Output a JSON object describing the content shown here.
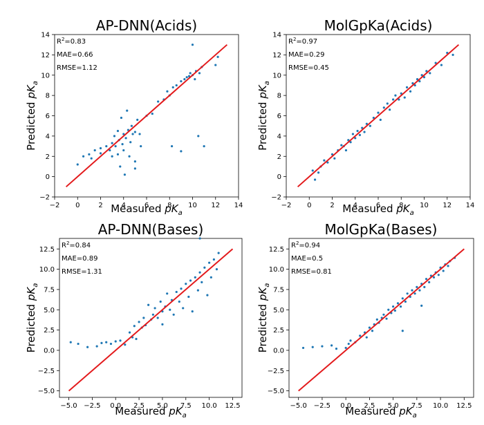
{
  "figure": {
    "xlabel_text": "Measured ",
    "ylabel_text": "Predicted ",
    "quantity_symbol": "pK",
    "quantity_subscript": "a"
  },
  "chart_data": [
    {
      "type": "scatter",
      "title": "AP-DNN(Acids)",
      "xlabel": "Measured pKa",
      "ylabel": "Predicted pKa",
      "xlim": [
        -2,
        14
      ],
      "ylim": [
        -2,
        14
      ],
      "xticks": [
        "−2",
        "0",
        "2",
        "4",
        "6",
        "8",
        "10",
        "12",
        "14"
      ],
      "yticks": [
        "−2",
        "0",
        "2",
        "4",
        "6",
        "8",
        "10",
        "12",
        "14"
      ],
      "tick_values": [
        -2,
        0,
        2,
        4,
        6,
        8,
        10,
        12,
        14
      ],
      "stats": {
        "r2_label": "R",
        "r2_exp": "2",
        "r2_value": "=0.83",
        "mae": "MAE=0.66",
        "rmse": "RMSE=1.12"
      },
      "line": {
        "x": [
          -1,
          13
        ],
        "y": [
          -1,
          13
        ]
      },
      "points": [
        [
          0,
          1.2
        ],
        [
          0.5,
          2.0
        ],
        [
          1,
          2.2
        ],
        [
          1.2,
          1.8
        ],
        [
          1.5,
          2.6
        ],
        [
          2,
          2.3
        ],
        [
          2,
          2.8
        ],
        [
          2.5,
          3.0
        ],
        [
          2.8,
          2.6
        ],
        [
          3,
          3.3
        ],
        [
          3,
          2.0
        ],
        [
          3.2,
          4.0
        ],
        [
          3.3,
          3.0
        ],
        [
          3.5,
          2.2
        ],
        [
          3.5,
          4.5
        ],
        [
          3.6,
          3.6
        ],
        [
          3.7,
          1.0
        ],
        [
          3.8,
          5.8
        ],
        [
          3.9,
          3.2
        ],
        [
          4,
          4.2
        ],
        [
          4,
          2.6
        ],
        [
          4.1,
          0.2
        ],
        [
          4.2,
          3.8
        ],
        [
          4.3,
          6.5
        ],
        [
          4.4,
          4.6
        ],
        [
          4.5,
          2.0
        ],
        [
          4.6,
          3.4
        ],
        [
          4.7,
          5.0
        ],
        [
          4.8,
          4.2
        ],
        [
          5,
          1.5
        ],
        [
          5,
          4.4
        ],
        [
          5,
          0.8
        ],
        [
          5.2,
          5.6
        ],
        [
          5.4,
          4.2
        ],
        [
          5.5,
          3.0
        ],
        [
          6,
          6.0
        ],
        [
          6.5,
          6.2
        ],
        [
          7,
          7.4
        ],
        [
          7.5,
          7.6
        ],
        [
          7.8,
          8.4
        ],
        [
          8,
          8.0
        ],
        [
          8.2,
          3.0
        ],
        [
          8.3,
          8.8
        ],
        [
          8.6,
          9.0
        ],
        [
          9,
          9.4
        ],
        [
          9,
          2.5
        ],
        [
          9.3,
          9.6
        ],
        [
          9.5,
          9.8
        ],
        [
          9.7,
          9.9
        ],
        [
          9.8,
          10.2
        ],
        [
          10,
          10.0
        ],
        [
          10,
          13.0
        ],
        [
          10.2,
          9.6
        ],
        [
          10.3,
          10.4
        ],
        [
          10.5,
          4.0
        ],
        [
          10.6,
          10.2
        ],
        [
          10.8,
          10.8
        ],
        [
          11,
          3.0
        ],
        [
          12,
          11.0
        ],
        [
          12.2,
          11.8
        ]
      ]
    },
    {
      "type": "scatter",
      "title": "MolGpKa(Acids)",
      "xlabel": "Measured pKa",
      "ylabel": "Predicted pKa",
      "xlim": [
        -2,
        14
      ],
      "ylim": [
        -2,
        14
      ],
      "xticks": [
        "−2",
        "0",
        "2",
        "4",
        "6",
        "8",
        "10",
        "12",
        "14"
      ],
      "yticks": [
        "−2",
        "0",
        "2",
        "4",
        "6",
        "8",
        "10",
        "12",
        "14"
      ],
      "tick_values": [
        -2,
        0,
        2,
        4,
        6,
        8,
        10,
        12,
        14
      ],
      "stats": {
        "r2_label": "R",
        "r2_exp": "2",
        "r2_value": "=0.97",
        "mae": "MAE=0.29",
        "rmse": "RMSE=0.45"
      },
      "line": {
        "x": [
          -1,
          13
        ],
        "y": [
          -1,
          13
        ]
      },
      "points": [
        [
          0.3,
          0.6
        ],
        [
          0.5,
          -0.3
        ],
        [
          0.8,
          0.4
        ],
        [
          1,
          1.0
        ],
        [
          1.3,
          1.6
        ],
        [
          1.6,
          1.4
        ],
        [
          2,
          2.2
        ],
        [
          2.2,
          1.8
        ],
        [
          2.5,
          2.6
        ],
        [
          2.8,
          3.1
        ],
        [
          3,
          3.0
        ],
        [
          3.2,
          2.6
        ],
        [
          3.4,
          3.6
        ],
        [
          3.6,
          3.4
        ],
        [
          3.8,
          4.2
        ],
        [
          4,
          3.8
        ],
        [
          4.2,
          4.5
        ],
        [
          4.4,
          4.1
        ],
        [
          4.6,
          4.8
        ],
        [
          4.8,
          4.4
        ],
        [
          5,
          5.2
        ],
        [
          5.3,
          5.0
        ],
        [
          5.6,
          5.8
        ],
        [
          6,
          6.3
        ],
        [
          6.2,
          5.6
        ],
        [
          6.5,
          6.8
        ],
        [
          6.8,
          7.2
        ],
        [
          7,
          6.6
        ],
        [
          7.3,
          7.6
        ],
        [
          7.5,
          8.0
        ],
        [
          7.8,
          7.6
        ],
        [
          8,
          8.2
        ],
        [
          8.3,
          7.8
        ],
        [
          8.5,
          8.8
        ],
        [
          8.8,
          8.4
        ],
        [
          9,
          9.2
        ],
        [
          9.2,
          9.0
        ],
        [
          9.4,
          9.6
        ],
        [
          9.6,
          9.4
        ],
        [
          9.8,
          10.0
        ],
        [
          10,
          9.8
        ],
        [
          10.2,
          10.4
        ],
        [
          10.5,
          10.2
        ],
        [
          11,
          11.2
        ],
        [
          11.5,
          11.0
        ],
        [
          12,
          12.2
        ],
        [
          12.5,
          12.0
        ]
      ]
    },
    {
      "type": "scatter",
      "title": "AP-DNN(Bases)",
      "xlabel": "Measured pKa",
      "ylabel": "Predicted pKa",
      "xlim": [
        -6,
        13.5
      ],
      "ylim": [
        -5.8,
        13.8
      ],
      "xticks": [
        "−5.0",
        "−2.5",
        "0.0",
        "2.5",
        "5.0",
        "7.5",
        "10.0",
        "12.5"
      ],
      "yticks": [
        "−5.0",
        "−2.5",
        "0.0",
        "2.5",
        "5.0",
        "7.5",
        "10.0",
        "12.5"
      ],
      "tick_values": [
        -5,
        -2.5,
        0,
        2.5,
        5,
        7.5,
        10,
        12.5
      ],
      "stats": {
        "r2_label": "R",
        "r2_exp": "2",
        "r2_value": "=0.84",
        "mae": "MAE=0.89",
        "rmse": "RMSE=1.31"
      },
      "line": {
        "x": [
          -5,
          12.5
        ],
        "y": [
          -5,
          12.5
        ]
      },
      "points": [
        [
          -4.8,
          1.0
        ],
        [
          -4,
          0.8
        ],
        [
          -3,
          0.4
        ],
        [
          -2,
          0.5
        ],
        [
          -1.5,
          0.9
        ],
        [
          -1,
          1.0
        ],
        [
          -0.5,
          0.8
        ],
        [
          0,
          1.1
        ],
        [
          0.5,
          1.2
        ],
        [
          1,
          0.7
        ],
        [
          1.5,
          2.2
        ],
        [
          1.8,
          1.6
        ],
        [
          2,
          3.0
        ],
        [
          2.2,
          1.4
        ],
        [
          2.5,
          3.5
        ],
        [
          2.8,
          2.8
        ],
        [
          3,
          4.0
        ],
        [
          3.2,
          3.1
        ],
        [
          3.5,
          5.6
        ],
        [
          3.8,
          3.8
        ],
        [
          4,
          4.4
        ],
        [
          4.2,
          5.2
        ],
        [
          4.5,
          4.0
        ],
        [
          4.8,
          6.0
        ],
        [
          5,
          4.8
        ],
        [
          5,
          3.2
        ],
        [
          5.3,
          5.4
        ],
        [
          5.5,
          7.0
        ],
        [
          5.8,
          5.0
        ],
        [
          6,
          6.2
        ],
        [
          6.2,
          4.4
        ],
        [
          6.5,
          7.2
        ],
        [
          6.8,
          6.0
        ],
        [
          7,
          7.6
        ],
        [
          7.2,
          5.2
        ],
        [
          7.5,
          8.2
        ],
        [
          7.8,
          6.6
        ],
        [
          8,
          8.6
        ],
        [
          8.2,
          4.8
        ],
        [
          8.5,
          9.0
        ],
        [
          8.8,
          7.4
        ],
        [
          9,
          9.6
        ],
        [
          9.2,
          8.4
        ],
        [
          9.5,
          10.2
        ],
        [
          9.8,
          6.8
        ],
        [
          10,
          10.8
        ],
        [
          10.2,
          9.0
        ],
        [
          10.5,
          11.2
        ],
        [
          10.8,
          10.0
        ],
        [
          11,
          12.0
        ],
        [
          9,
          13.8
        ]
      ]
    },
    {
      "type": "scatter",
      "title": "MolGpKa(Bases)",
      "xlabel": "Measured pKa",
      "ylabel": "Predicted pKa",
      "xlim": [
        -6,
        13.5
      ],
      "ylim": [
        -5.8,
        13.8
      ],
      "xticks": [
        "−5.0",
        "−2.5",
        "0.0",
        "2.5",
        "5.0",
        "7.5",
        "10.0",
        "12.5"
      ],
      "yticks": [
        "−5.0",
        "−2.5",
        "0.0",
        "2.5",
        "5.0",
        "7.5",
        "10.0",
        "12.5"
      ],
      "tick_values": [
        -5,
        -2.5,
        0,
        2.5,
        5,
        7.5,
        10,
        12.5
      ],
      "stats": {
        "r2_label": "R",
        "r2_exp": "2",
        "r2_value": "=0.94",
        "mae": "MAE=0.5",
        "rmse": "RMSE=0.81"
      },
      "line": {
        "x": [
          -5,
          12.5
        ],
        "y": [
          -5,
          12.5
        ]
      },
      "points": [
        [
          -4.5,
          0.3
        ],
        [
          -3.5,
          0.4
        ],
        [
          -2.5,
          0.5
        ],
        [
          -1.5,
          0.6
        ],
        [
          -1,
          0.2
        ],
        [
          0,
          0.3
        ],
        [
          0.3,
          0.8
        ],
        [
          0.5,
          1.2
        ],
        [
          1,
          1.0
        ],
        [
          1.5,
          1.8
        ],
        [
          2,
          2.2
        ],
        [
          2.2,
          1.6
        ],
        [
          2.5,
          2.8
        ],
        [
          2.8,
          2.4
        ],
        [
          3,
          3.2
        ],
        [
          3.3,
          3.8
        ],
        [
          3.5,
          3.4
        ],
        [
          3.8,
          4.0
        ],
        [
          4,
          4.4
        ],
        [
          4.3,
          3.9
        ],
        [
          4.5,
          5.0
        ],
        [
          4.8,
          4.6
        ],
        [
          5,
          5.4
        ],
        [
          5.2,
          4.9
        ],
        [
          5.5,
          5.8
        ],
        [
          5.8,
          5.4
        ],
        [
          6,
          6.4
        ],
        [
          6.3,
          6.0
        ],
        [
          6.5,
          7.0
        ],
        [
          6.8,
          6.6
        ],
        [
          7,
          7.4
        ],
        [
          7.3,
          7.0
        ],
        [
          7.5,
          7.8
        ],
        [
          7.8,
          7.4
        ],
        [
          8,
          8.2
        ],
        [
          8.3,
          7.8
        ],
        [
          8.5,
          8.8
        ],
        [
          8.8,
          8.4
        ],
        [
          9,
          9.2
        ],
        [
          9.3,
          9.0
        ],
        [
          9.5,
          9.6
        ],
        [
          9.8,
          9.3
        ],
        [
          10,
          10.2
        ],
        [
          10.3,
          9.8
        ],
        [
          10.5,
          10.6
        ],
        [
          10.8,
          10.4
        ],
        [
          11,
          11.0
        ],
        [
          11.5,
          11.4
        ],
        [
          6,
          2.4
        ],
        [
          8,
          5.5
        ]
      ]
    }
  ]
}
